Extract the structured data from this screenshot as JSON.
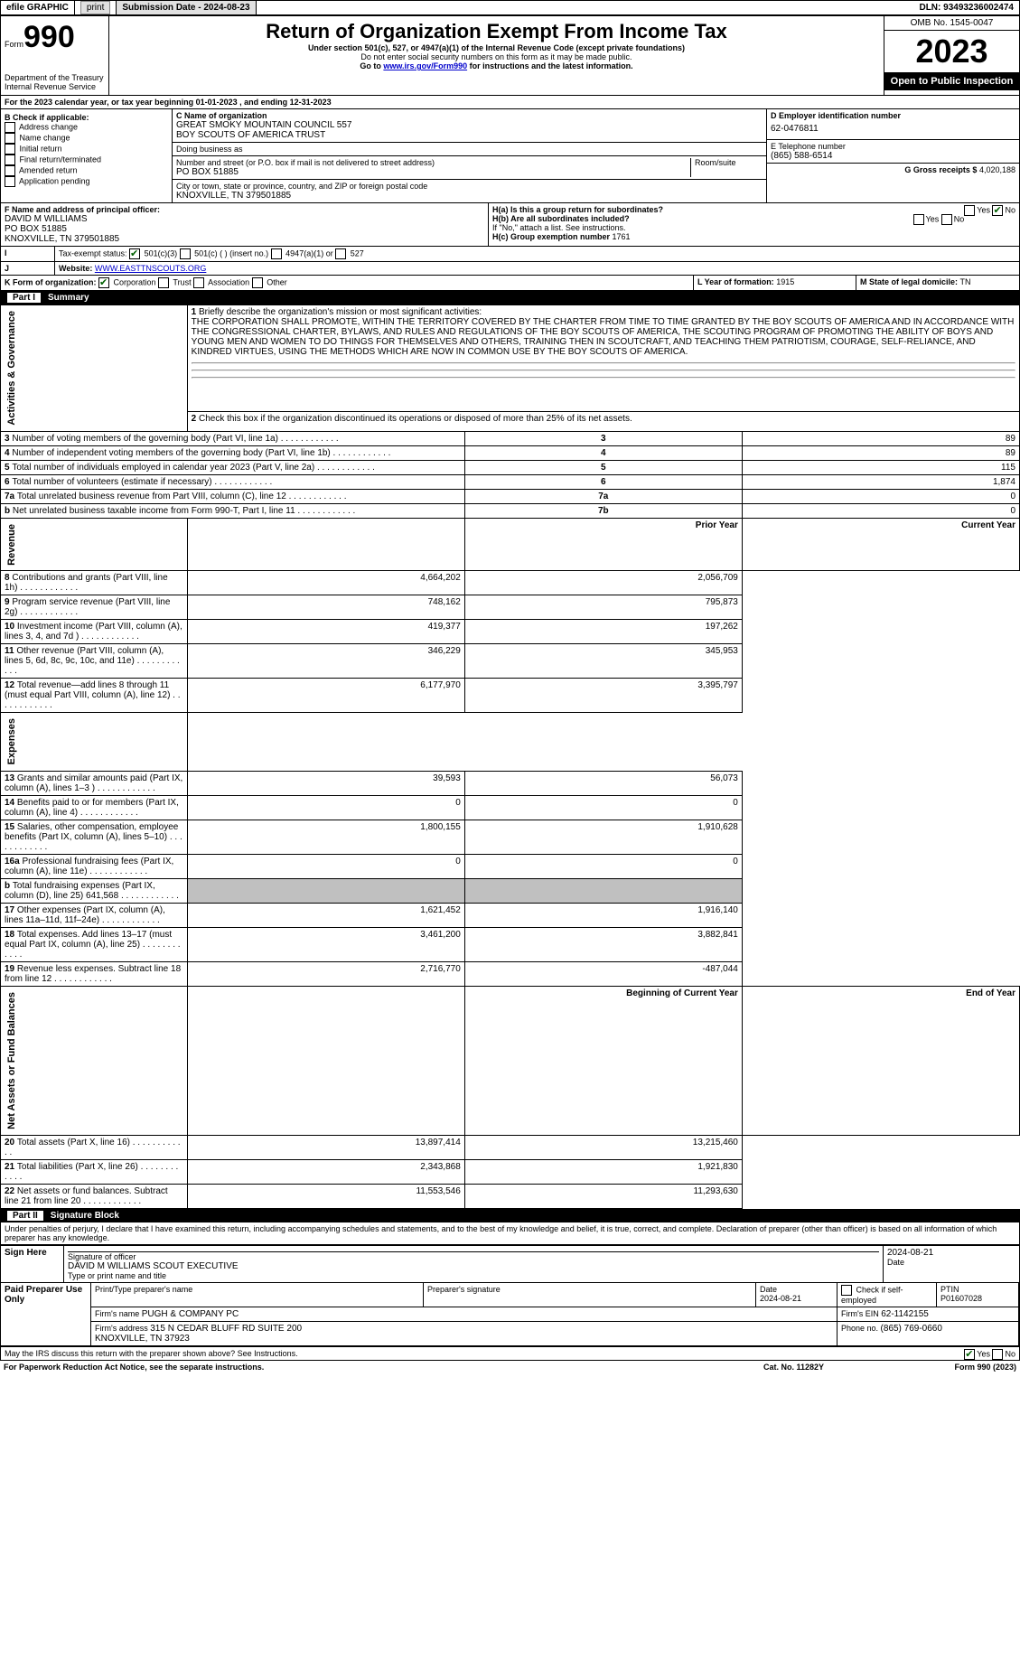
{
  "topbar": {
    "efile": "efile GRAPHIC",
    "print": "print",
    "subdate_lbl": "Submission Date - 2024-08-23",
    "dln_lbl": "DLN: 93493236002474"
  },
  "header": {
    "form_lbl": "Form",
    "form_num": "990",
    "dept": "Department of the Treasury\nInternal Revenue Service",
    "title": "Return of Organization Exempt From Income Tax",
    "sub1": "Under section 501(c), 527, or 4947(a)(1) of the Internal Revenue Code (except private foundations)",
    "sub2": "Do not enter social security numbers on this form as it may be made public.",
    "sub3_pre": "Go to ",
    "sub3_link": "www.irs.gov/Form990",
    "sub3_post": " for instructions and the latest information.",
    "omb": "OMB No. 1545-0047",
    "year": "2023",
    "open": "Open to Public Inspection"
  },
  "line_a": "For the 2023 calendar year, or tax year beginning 01-01-2023    , and ending 12-31-2023",
  "box_b": {
    "title": "B Check if applicable:",
    "opts": [
      "Address change",
      "Name change",
      "Initial return",
      "Final return/terminated",
      "Amended return",
      "Application pending"
    ]
  },
  "box_c": {
    "name_lbl": "C Name of organization",
    "name": "GREAT SMOKY MOUNTAIN COUNCIL 557\nBOY SCOUTS OF AMERICA TRUST",
    "dba_lbl": "Doing business as",
    "addr_lbl": "Number and street (or P.O. box if mail is not delivered to street address)",
    "addr": "PO BOX 51885",
    "room_lbl": "Room/suite",
    "city_lbl": "City or town, state or province, country, and ZIP or foreign postal code",
    "city": "KNOXVILLE, TN  379501885"
  },
  "box_d": {
    "lbl": "D Employer identification number",
    "val": "62-0476811"
  },
  "box_e": {
    "lbl": "E Telephone number",
    "val": "(865) 588-6514"
  },
  "box_g": {
    "lbl": "G Gross receipts $",
    "val": "4,020,188"
  },
  "box_f": {
    "lbl": "F  Name and address of principal officer:",
    "val": "DAVID M WILLIAMS\nPO BOX 51885\nKNOXVILLE, TN  379501885"
  },
  "box_h": {
    "a": "H(a)  Is this a group return for subordinates?",
    "b": "H(b)  Are all subordinates included?",
    "note": "If \"No,\" attach a list. See instructions.",
    "c": "H(c)  Group exemption number ",
    "c_val": "1761",
    "yes": "Yes",
    "no": "No"
  },
  "line_i": {
    "lbl": "Tax-exempt status:",
    "o1": "501(c)(3)",
    "o2": "501(c) (  ) (insert no.)",
    "o3": "4947(a)(1) or",
    "o4": "527"
  },
  "line_j": {
    "lbl": "Website: ",
    "val": "WWW.EASTTNSCOUTS.ORG"
  },
  "line_k": {
    "lbl": "K Form of organization:",
    "o1": "Corporation",
    "o2": "Trust",
    "o3": "Association",
    "o4": "Other"
  },
  "line_l": {
    "lbl": "L Year of formation: ",
    "val": "1915"
  },
  "line_m": {
    "lbl": "M State of legal domicile: ",
    "val": "TN"
  },
  "part1": {
    "lbl": "Part I",
    "title": "Summary"
  },
  "summary": {
    "q1": "Briefly describe the organization's mission or most significant activities:",
    "q1_text": "THE CORPORATION SHALL PROMOTE, WITHIN THE TERRITORY COVERED BY THE CHARTER FROM TIME TO TIME GRANTED BY THE BOY SCOUTS OF AMERICA AND IN ACCORDANCE WITH THE CONGRESSIONAL CHARTER, BYLAWS, AND RULES AND REGULATIONS OF THE BOY SCOUTS OF AMERICA, THE SCOUTING PROGRAM OF PROMOTING THE ABILITY OF BOYS AND YOUNG MEN AND WOMEN TO DO THINGS FOR THEMSELVES AND OTHERS, TRAINING THEN IN SCOUTCRAFT, AND TEACHING THEM PATRIOTISM, COURAGE, SELF-RELIANCE, AND KINDRED VIRTUES, USING THE METHODS WHICH ARE NOW IN COMMON USE BY THE BOY SCOUTS OF AMERICA.",
    "q2": "Check this box        if the organization discontinued its operations or disposed of more than 25% of its net assets.",
    "rows_ag": [
      {
        "n": "3",
        "t": "Number of voting members of the governing body (Part VI, line 1a)",
        "r": "3",
        "v": "89"
      },
      {
        "n": "4",
        "t": "Number of independent voting members of the governing body (Part VI, line 1b)",
        "r": "4",
        "v": "89"
      },
      {
        "n": "5",
        "t": "Total number of individuals employed in calendar year 2023 (Part V, line 2a)",
        "r": "5",
        "v": "115"
      },
      {
        "n": "6",
        "t": "Total number of volunteers (estimate if necessary)",
        "r": "6",
        "v": "1,874"
      },
      {
        "n": "7a",
        "t": "Total unrelated business revenue from Part VIII, column (C), line 12",
        "r": "7a",
        "v": "0"
      },
      {
        "n": "b",
        "t": "Net unrelated business taxable income from Form 990-T, Part I, line 11",
        "r": "7b",
        "v": "0"
      }
    ],
    "hdr_prior": "Prior Year",
    "hdr_curr": "Current Year",
    "rev": [
      {
        "n": "8",
        "t": "Contributions and grants (Part VIII, line 1h)",
        "p": "4,664,202",
        "c": "2,056,709"
      },
      {
        "n": "9",
        "t": "Program service revenue (Part VIII, line 2g)",
        "p": "748,162",
        "c": "795,873"
      },
      {
        "n": "10",
        "t": "Investment income (Part VIII, column (A), lines 3, 4, and 7d )",
        "p": "419,377",
        "c": "197,262"
      },
      {
        "n": "11",
        "t": "Other revenue (Part VIII, column (A), lines 5, 6d, 8c, 9c, 10c, and 11e)",
        "p": "346,229",
        "c": "345,953"
      },
      {
        "n": "12",
        "t": "Total revenue—add lines 8 through 11 (must equal Part VIII, column (A), line 12)",
        "p": "6,177,970",
        "c": "3,395,797"
      }
    ],
    "exp": [
      {
        "n": "13",
        "t": "Grants and similar amounts paid (Part IX, column (A), lines 1–3 )",
        "p": "39,593",
        "c": "56,073"
      },
      {
        "n": "14",
        "t": "Benefits paid to or for members (Part IX, column (A), line 4)",
        "p": "0",
        "c": "0"
      },
      {
        "n": "15",
        "t": "Salaries, other compensation, employee benefits (Part IX, column (A), lines 5–10)",
        "p": "1,800,155",
        "c": "1,910,628"
      },
      {
        "n": "16a",
        "t": "Professional fundraising fees (Part IX, column (A), line 11e)",
        "p": "0",
        "c": "0"
      },
      {
        "n": "b",
        "t": "Total fundraising expenses (Part IX, column (D), line 25) 641,568",
        "p": "",
        "c": "",
        "gray": true
      },
      {
        "n": "17",
        "t": "Other expenses (Part IX, column (A), lines 11a–11d, 11f–24e)",
        "p": "1,621,452",
        "c": "1,916,140"
      },
      {
        "n": "18",
        "t": "Total expenses. Add lines 13–17 (must equal Part IX, column (A), line 25)",
        "p": "3,461,200",
        "c": "3,882,841"
      },
      {
        "n": "19",
        "t": "Revenue less expenses. Subtract line 18 from line 12",
        "p": "2,716,770",
        "c": "-487,044"
      }
    ],
    "hdr_beg": "Beginning of Current Year",
    "hdr_end": "End of Year",
    "net": [
      {
        "n": "20",
        "t": "Total assets (Part X, line 16)",
        "p": "13,897,414",
        "c": "13,215,460"
      },
      {
        "n": "21",
        "t": "Total liabilities (Part X, line 26)",
        "p": "2,343,868",
        "c": "1,921,830"
      },
      {
        "n": "22",
        "t": "Net assets or fund balances. Subtract line 21 from line 20",
        "p": "11,553,546",
        "c": "11,293,630"
      }
    ],
    "side_ag": "Activities & Governance",
    "side_rev": "Revenue",
    "side_exp": "Expenses",
    "side_net": "Net Assets or Fund Balances"
  },
  "part2": {
    "lbl": "Part II",
    "title": "Signature Block"
  },
  "sig": {
    "decl": "Under penalties of perjury, I declare that I have examined this return, including accompanying schedules and statements, and to the best of my knowledge and belief, it is true, correct, and complete. Declaration of preparer (other than officer) is based on all information of which preparer has any knowledge.",
    "sign_here": "Sign Here",
    "sig_off": "Signature of officer",
    "sig_name": "DAVID M WILLIAMS  SCOUT EXECUTIVE",
    "sig_title": "Type or print name and title",
    "date_lbl": "Date",
    "date_val": "2024-08-21",
    "paid": "Paid Preparer Use Only",
    "prep_name_lbl": "Print/Type preparer's name",
    "prep_sig_lbl": "Preparer's signature",
    "prep_date": "2024-08-21",
    "self_emp": "Check        if self-employed",
    "ptin_lbl": "PTIN",
    "ptin": "P01607028",
    "firm_name_lbl": "Firm's name ",
    "firm_name": "PUGH & COMPANY PC",
    "firm_ein_lbl": "Firm's EIN ",
    "firm_ein": "62-1142155",
    "firm_addr_lbl": "Firm's address ",
    "firm_addr": "315 N CEDAR BLUFF RD SUITE 200\nKNOXVILLE, TN  37923",
    "phone_lbl": "Phone no. ",
    "phone": "(865) 769-0660",
    "discuss": "May the IRS discuss this return with the preparer shown above? See Instructions.",
    "yes": "Yes",
    "no": "No"
  },
  "footer": {
    "l": "For Paperwork Reduction Act Notice, see the separate instructions.",
    "m": "Cat. No. 11282Y",
    "r": "Form 990 (2023)"
  }
}
